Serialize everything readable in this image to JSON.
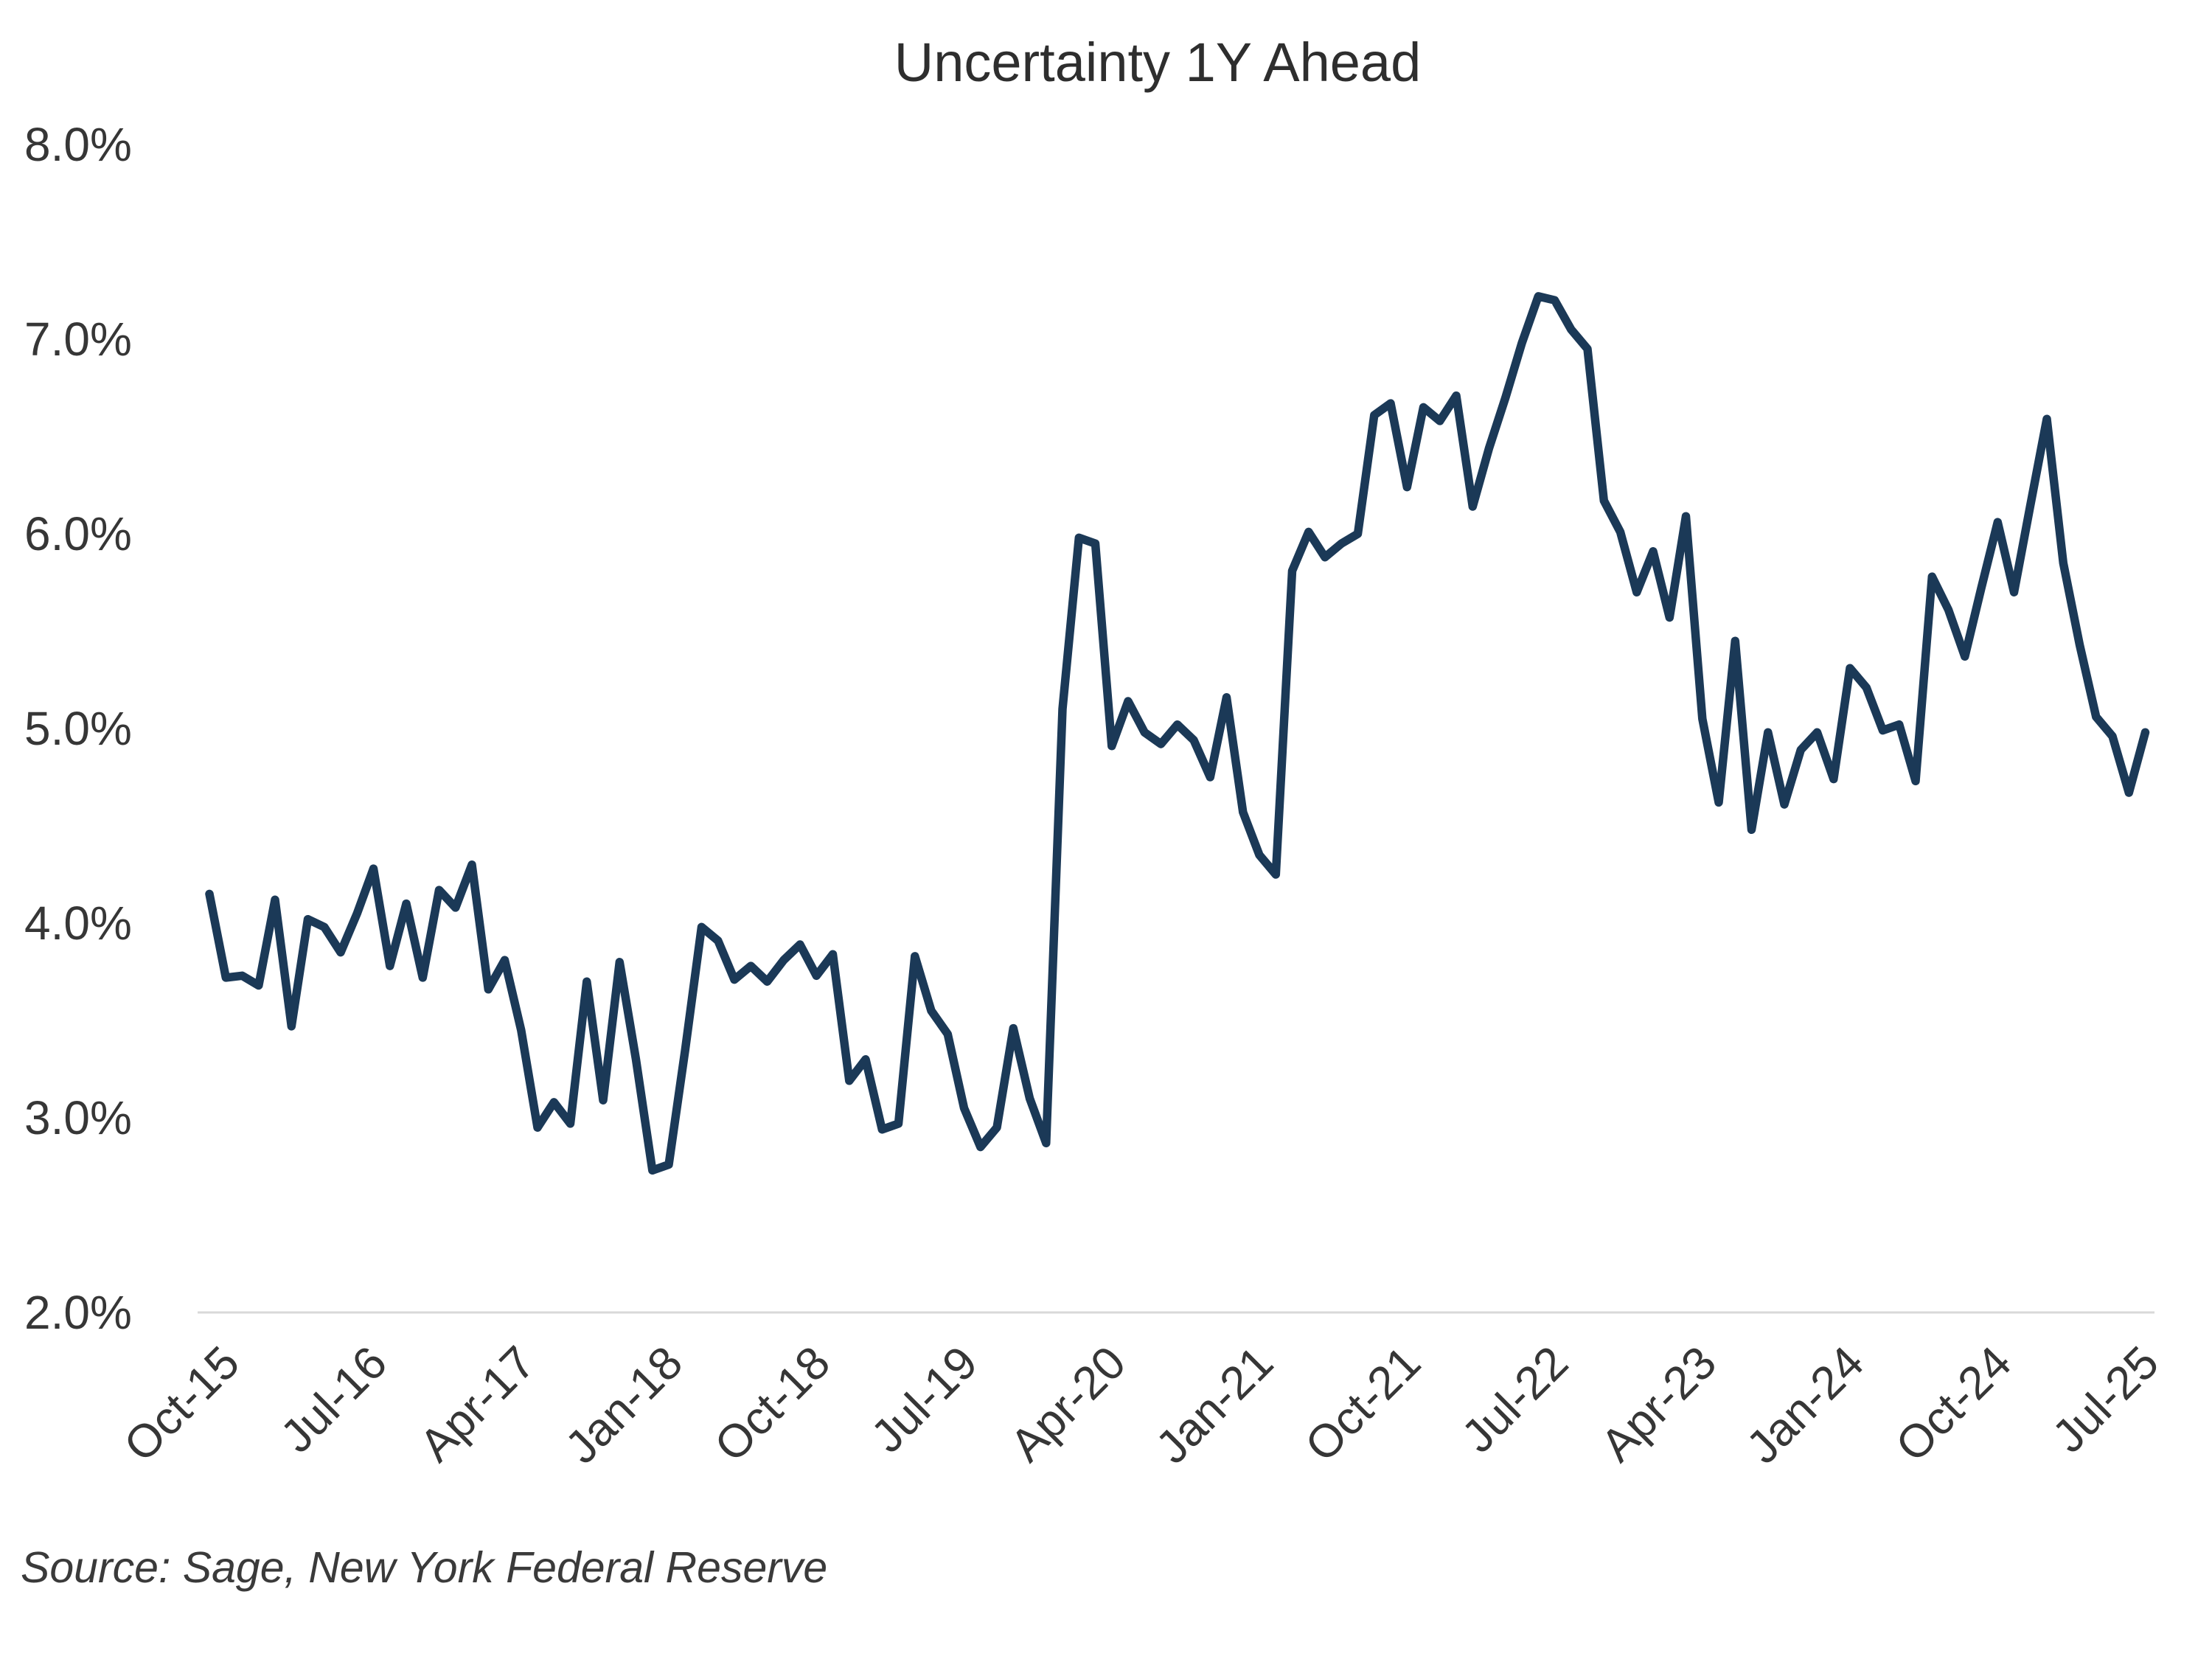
{
  "title": "Uncertainty 1Y Ahead",
  "source": "Source: Sage, New York Federal Reserve",
  "chart_data": {
    "type": "line",
    "title": "Uncertainty 1Y Ahead",
    "frequency": "monthly",
    "x_first": "Oct-2015",
    "x_last": "Aug-2025",
    "values": [
      4.15,
      3.72,
      3.73,
      3.68,
      4.12,
      3.47,
      4.02,
      3.98,
      3.85,
      4.05,
      4.28,
      3.78,
      4.1,
      3.72,
      4.17,
      4.08,
      4.3,
      3.66,
      3.81,
      3.45,
      2.95,
      3.08,
      2.97,
      3.7,
      3.09,
      3.8,
      3.3,
      2.73,
      2.76,
      3.35,
      3.98,
      3.91,
      3.71,
      3.78,
      3.7,
      3.81,
      3.89,
      3.73,
      3.84,
      3.19,
      3.3,
      2.94,
      2.97,
      3.83,
      3.55,
      3.43,
      3.05,
      2.85,
      2.95,
      3.46,
      3.1,
      2.87,
      5.1,
      5.98,
      5.95,
      4.91,
      5.14,
      4.98,
      4.92,
      5.02,
      4.94,
      4.75,
      5.16,
      4.57,
      4.35,
      4.25,
      5.81,
      6.01,
      5.88,
      5.95,
      6.0,
      6.61,
      6.67,
      6.24,
      6.65,
      6.58,
      6.71,
      6.14,
      6.44,
      6.7,
      6.98,
      7.22,
      7.2,
      7.05,
      6.95,
      6.17,
      6.01,
      5.7,
      5.91,
      5.57,
      6.09,
      5.05,
      4.62,
      5.45,
      4.48,
      4.98,
      4.61,
      4.89,
      4.98,
      4.74,
      5.31,
      5.21,
      4.99,
      5.02,
      4.73,
      5.78,
      5.61,
      5.37,
      5.72,
      6.06,
      5.7,
      6.15,
      6.59,
      5.85,
      5.43,
      5.06,
      4.96,
      4.67,
      4.98
    ],
    "x_tick_labels": [
      "Oct-15",
      "Jul-16",
      "Apr-17",
      "Jan-18",
      "Oct-18",
      "Jul-19",
      "Apr-20",
      "Jan-21",
      "Oct-21",
      "Jul-22",
      "Apr-23",
      "Jan-24",
      "Oct-24",
      "Jul-25"
    ],
    "x_tick_every_n_points": 9,
    "y_tick_labels": [
      "8.0%",
      "7.0%",
      "6.0%",
      "5.0%",
      "4.0%",
      "3.0%",
      "2.0%"
    ],
    "ylim": [
      2.0,
      8.0
    ],
    "line_color": "#1b3957",
    "axis_line_color": "#d9d9d9",
    "grid": "bottom-axis-line-only",
    "legend": "none"
  }
}
